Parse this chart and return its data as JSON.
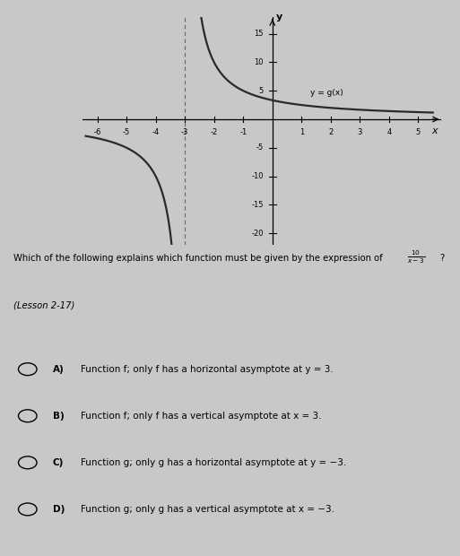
{
  "title_question": "Which of the following explains which function must be given by the expression of ",
  "lesson": "(Lesson 2‑17)",
  "bg_color": "#c8c8c8",
  "curve_color": "#2a2a2a",
  "graph_xlim": [
    -6.5,
    5.8
  ],
  "graph_ylim": [
    -22,
    18
  ],
  "x_ticks": [
    -6,
    -5,
    -4,
    -3,
    -2,
    -1,
    1,
    2,
    3,
    4,
    5
  ],
  "y_ticks": [
    -20,
    -15,
    -10,
    -5,
    5,
    10,
    15
  ],
  "label_text": "y = g(x)",
  "option_labels": [
    "A)",
    "B)",
    "C)",
    "D)"
  ],
  "option_texts": [
    "Function f; only f has a horizontal asymptote at y = 3.",
    "Function f; only f has a vertical asymptote at x = 3.",
    "Function g; only g has a horizontal asymptote at y = −3.",
    "Function g; only g has a vertical asymptote at x = −3."
  ]
}
